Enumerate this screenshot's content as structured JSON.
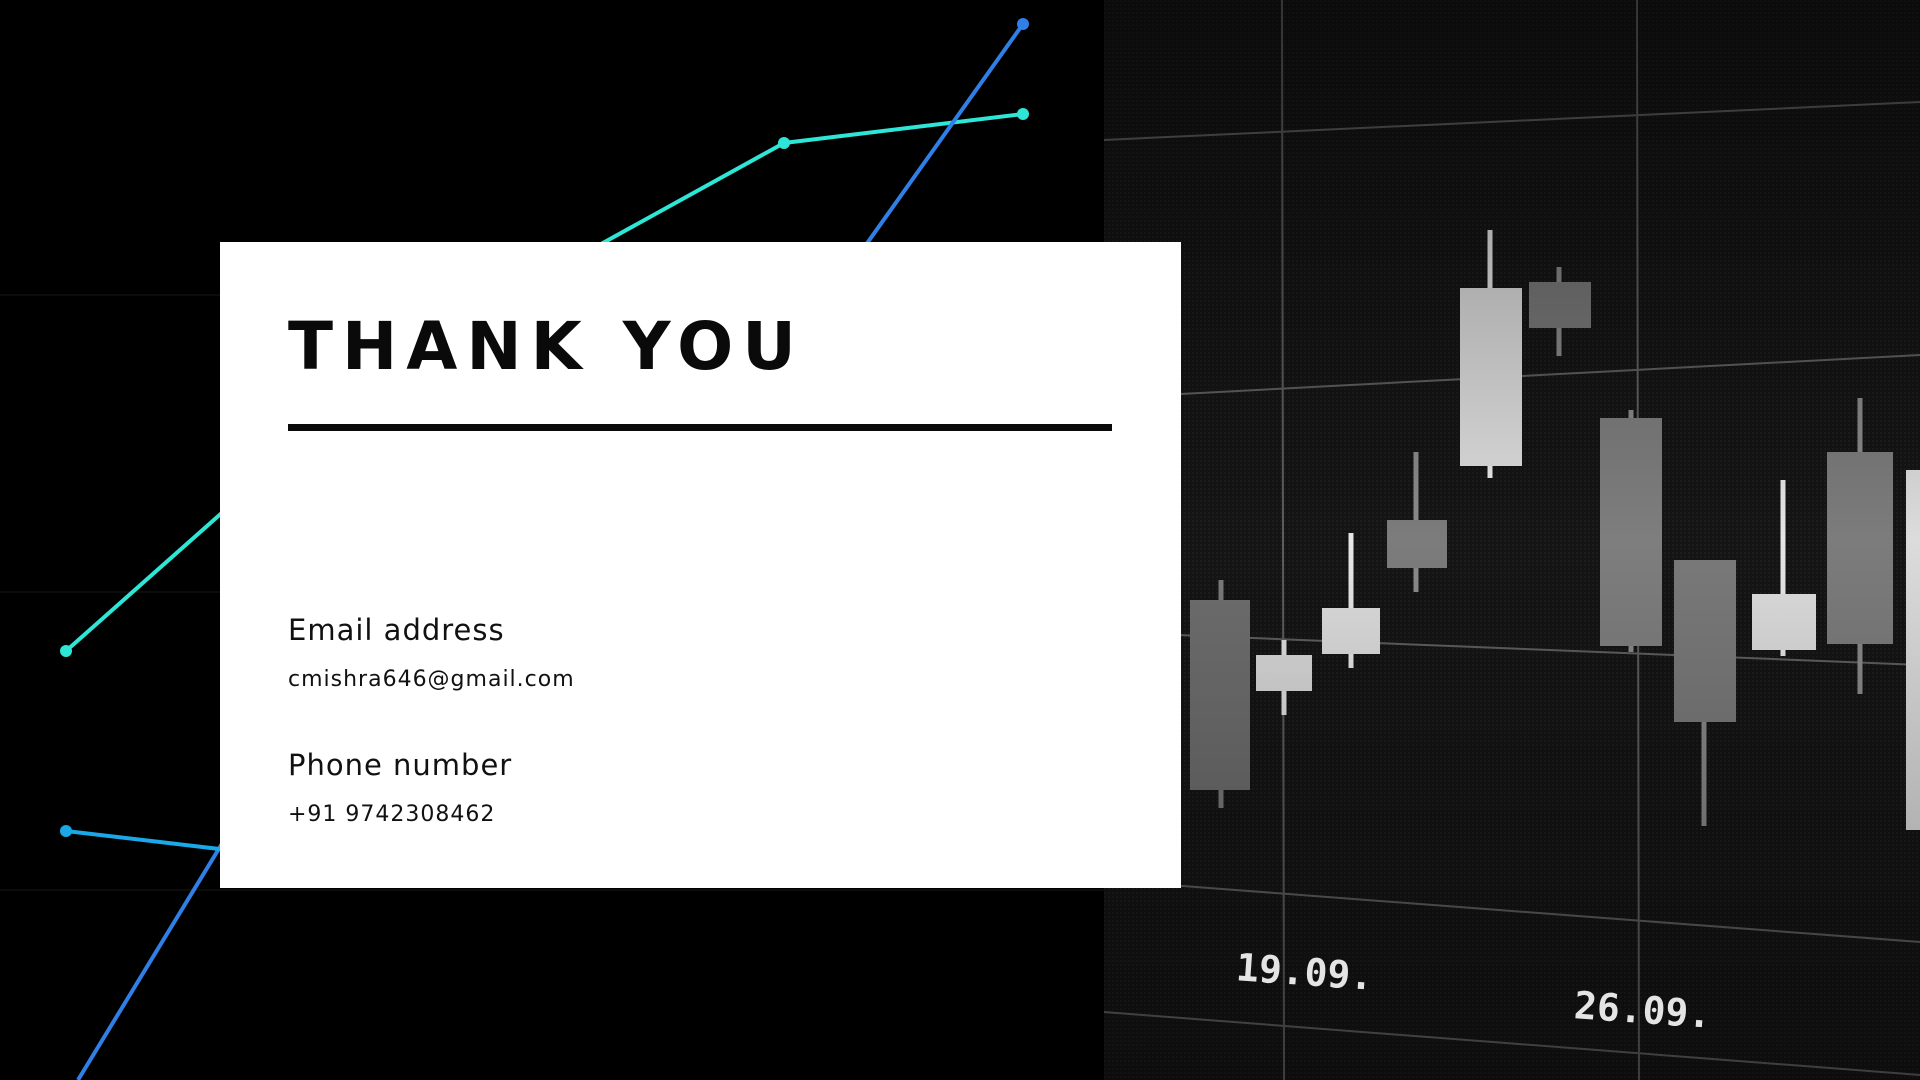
{
  "slide": {
    "title": "THANK YOU",
    "email": {
      "label": "Email address",
      "value": "cmishra646@gmail.com"
    },
    "phone": {
      "label": "Phone number",
      "value": "+91 9742308462"
    }
  },
  "background_image": {
    "description_icon": "candlestick-chart-photo",
    "date_labels": [
      "19.09.",
      "26.09."
    ]
  },
  "colors": {
    "background": "#000000",
    "card": "#ffffff",
    "text": "#0a0a0a",
    "line_teal": "#2ee6d6",
    "line_blue": "#2f7fe6",
    "line_sky": "#1aa8e8"
  }
}
